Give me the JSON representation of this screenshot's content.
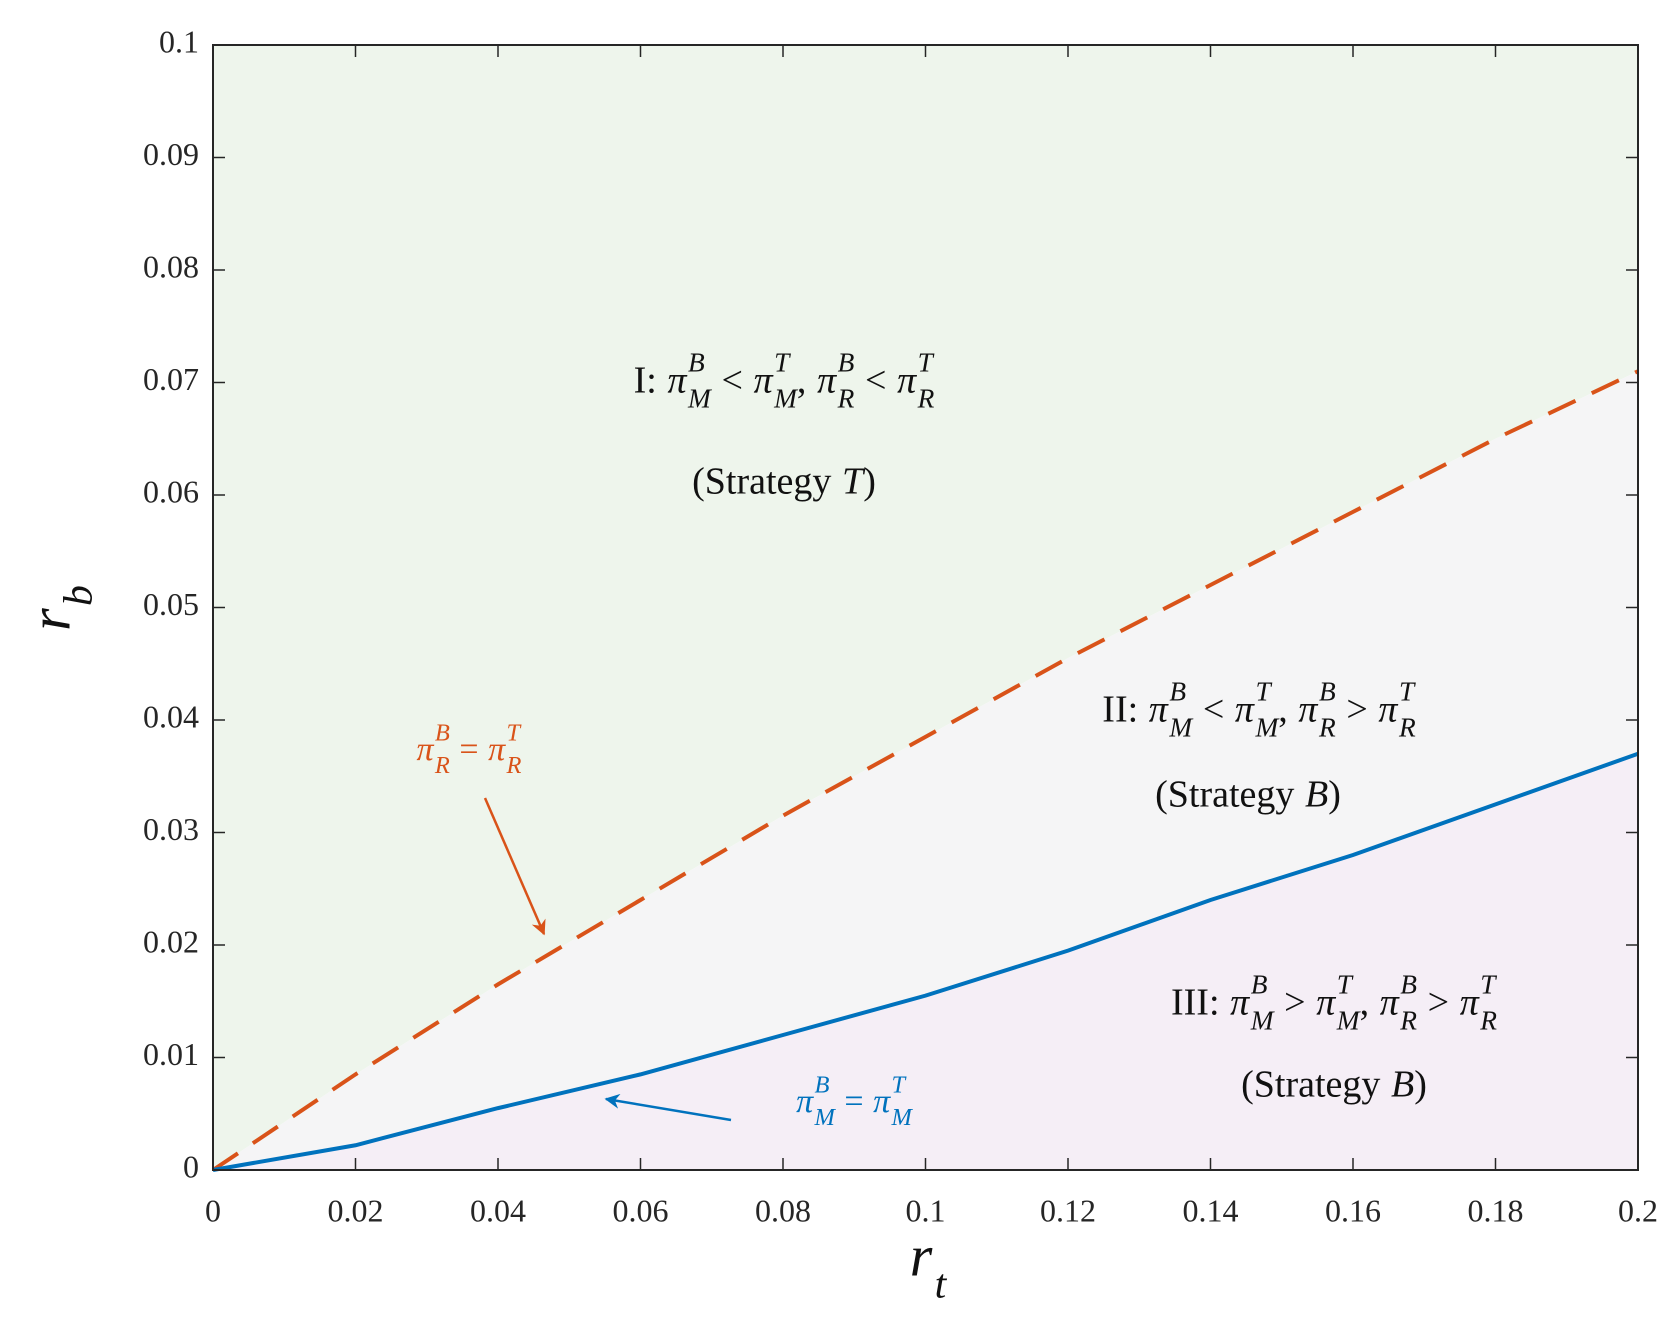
{
  "chart_data": {
    "type": "line",
    "xlabel": [
      {
        "base": "r",
        "sub": "t"
      }
    ],
    "ylabel": [
      {
        "base": "r",
        "sub": "b"
      }
    ],
    "xlim": [
      0,
      0.2
    ],
    "ylim": [
      0,
      0.1
    ],
    "xticks": [
      0,
      0.02,
      0.04,
      0.06,
      0.08,
      0.1,
      0.12,
      0.14,
      0.16,
      0.18,
      0.2
    ],
    "yticks": [
      0,
      0.01,
      0.02,
      0.03,
      0.04,
      0.05,
      0.06,
      0.07,
      0.08,
      0.09,
      0.1
    ],
    "x": [
      0,
      0.02,
      0.04,
      0.06,
      0.08,
      0.1,
      0.12,
      0.14,
      0.16,
      0.18,
      0.2
    ],
    "series": [
      {
        "label": [
          {
            "base": "π",
            "sup": "B",
            "sub": "R"
          },
          "=",
          {
            "base": "π",
            "sup": "T",
            "sub": "R"
          }
        ],
        "color": "#d95319",
        "dashed": true,
        "values": [
          0,
          0.0085,
          0.0165,
          0.024,
          0.0315,
          0.0385,
          0.0455,
          0.052,
          0.0585,
          0.065,
          0.071
        ]
      },
      {
        "label": [
          {
            "base": "π",
            "sup": "B",
            "sub": "M"
          },
          "=",
          {
            "base": "π",
            "sup": "T",
            "sub": "M"
          }
        ],
        "color": "#0072bd",
        "dashed": false,
        "values": [
          0,
          0.0022,
          0.0055,
          0.0085,
          0.012,
          0.0155,
          0.0195,
          0.024,
          0.028,
          0.0325,
          0.037
        ]
      }
    ],
    "regions": [
      {
        "label": [
          "I:",
          {
            "base": "π",
            "sup": "B",
            "sub": "M"
          },
          "<",
          {
            "base": "π",
            "sup": "T",
            "sub": "M"
          },
          ",",
          {
            "base": "π",
            "sup": "B",
            "sub": "R"
          },
          "<",
          {
            "base": "π",
            "sup": "T",
            "sub": "R"
          }
        ],
        "strategy": [
          "(Strategy",
          {
            "italic": "T"
          },
          ")"
        ],
        "fill": "#eef5ec"
      },
      {
        "label": [
          "II:",
          {
            "base": "π",
            "sup": "B",
            "sub": "M"
          },
          "<",
          {
            "base": "π",
            "sup": "T",
            "sub": "M"
          },
          ",",
          {
            "base": "π",
            "sup": "B",
            "sub": "R"
          },
          ">",
          {
            "base": "π",
            "sup": "T",
            "sub": "R"
          }
        ],
        "strategy": [
          "(Strategy",
          {
            "italic": "B"
          },
          ")"
        ],
        "fill": "#f5f5f6"
      },
      {
        "label": [
          "III:",
          {
            "base": "π",
            "sup": "B",
            "sub": "M"
          },
          ">",
          {
            "base": "π",
            "sup": "T",
            "sub": "M"
          },
          ",",
          {
            "base": "π",
            "sup": "B",
            "sub": "R"
          },
          ">",
          {
            "base": "π",
            "sup": "T",
            "sub": "R"
          }
        ],
        "strategy": [
          "(Strategy",
          {
            "italic": "B"
          },
          ")"
        ],
        "fill": "#f5eef6"
      }
    ]
  }
}
